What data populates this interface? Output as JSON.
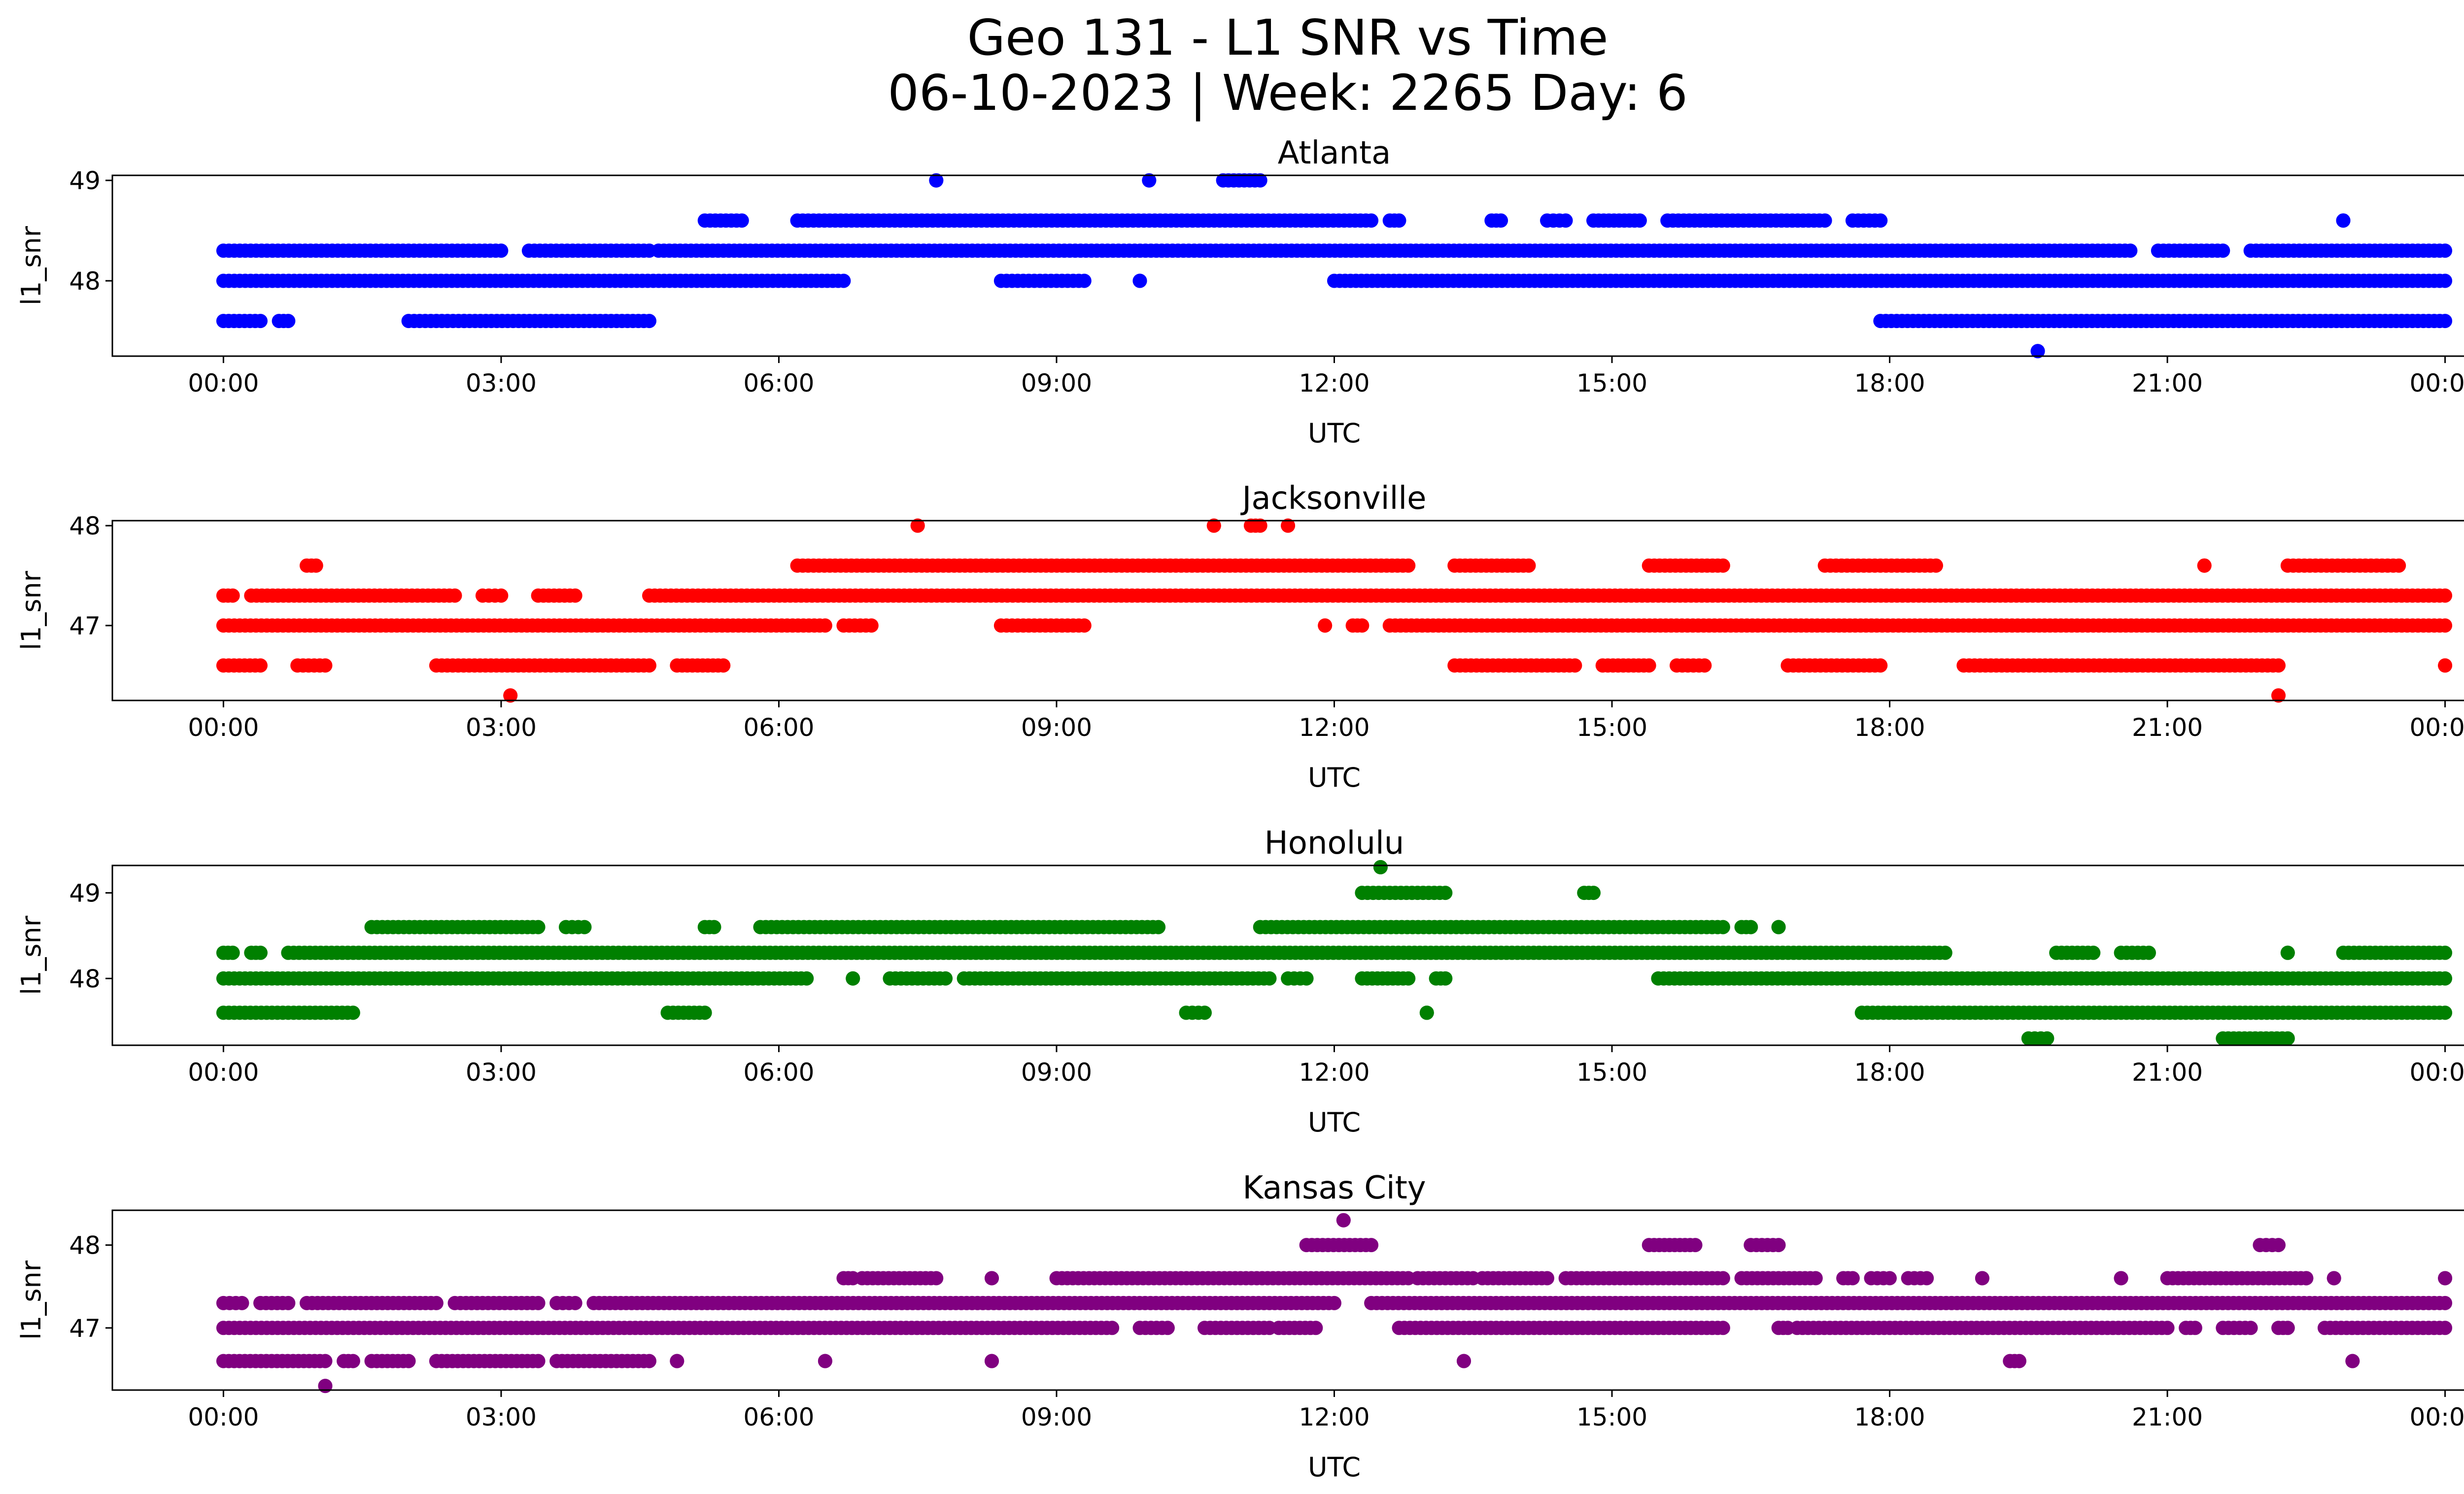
{
  "title": "Geo 131 - L1 SNR vs Time",
  "subtitle": "06-10-2023 | Week: 2265 Day: 6",
  "chart_data": [
    {
      "type": "scatter",
      "title": "Atlanta",
      "xlabel": "UTC",
      "ylabel": "l1_snr",
      "color": "#0000ff",
      "xticks": [
        "00:00",
        "03:00",
        "06:00",
        "09:00",
        "12:00",
        "15:00",
        "18:00",
        "21:00",
        "00:00"
      ],
      "xlim_hours": [
        -1.2,
        25.2
      ],
      "yticks": [
        48,
        49
      ],
      "ylim": [
        47.25,
        49.05
      ],
      "levels": [
        {
          "y": 48.0,
          "segments": [
            [
              0.0,
              6.7
            ],
            [
              8.4,
              9.3
            ],
            [
              9.9,
              9.9
            ],
            [
              12.0,
              24.0
            ]
          ]
        },
        {
          "y": 48.3,
          "segments": [
            [
              0.0,
              3.0
            ],
            [
              3.3,
              4.6
            ],
            [
              4.7,
              20.6
            ],
            [
              20.9,
              21.6
            ],
            [
              21.9,
              24.0
            ]
          ]
        },
        {
          "y": 47.6,
          "segments": [
            [
              0.0,
              0.4
            ],
            [
              0.6,
              0.7
            ],
            [
              2.0,
              2.6
            ],
            [
              2.6,
              4.6
            ],
            [
              17.9,
              24.0
            ]
          ]
        },
        {
          "y": 48.6,
          "segments": [
            [
              5.2,
              5.6
            ],
            [
              6.2,
              12.4
            ],
            [
              12.6,
              12.7
            ],
            [
              13.7,
              13.8
            ],
            [
              14.3,
              14.5
            ],
            [
              14.8,
              15.3
            ],
            [
              15.6,
              17.3
            ],
            [
              17.6,
              17.9
            ],
            [
              22.9,
              22.9
            ]
          ]
        },
        {
          "y": 49.0,
          "segments": [
            [
              7.7,
              7.7
            ],
            [
              10.0,
              10.0
            ],
            [
              10.8,
              11.2
            ]
          ]
        },
        {
          "y": 47.3,
          "segments": [
            [
              19.6,
              19.6
            ]
          ]
        }
      ]
    },
    {
      "type": "scatter",
      "title": "Jacksonville",
      "xlabel": "UTC",
      "ylabel": "l1_snr",
      "color": "#ff0000",
      "xticks": [
        "00:00",
        "03:00",
        "06:00",
        "09:00",
        "12:00",
        "15:00",
        "18:00",
        "21:00",
        "00:00"
      ],
      "xlim_hours": [
        -1.2,
        25.2
      ],
      "yticks": [
        47,
        48
      ],
      "ylim": [
        46.25,
        48.05
      ],
      "levels": [
        {
          "y": 47.0,
          "segments": [
            [
              0.0,
              6.5
            ],
            [
              6.7,
              7.0
            ],
            [
              8.4,
              9.3
            ],
            [
              11.9,
              11.9
            ],
            [
              12.2,
              12.3
            ],
            [
              12.6,
              24.0
            ]
          ]
        },
        {
          "y": 47.3,
          "segments": [
            [
              0.0,
              0.1
            ],
            [
              0.3,
              2.5
            ],
            [
              2.8,
              3.0
            ],
            [
              3.4,
              3.8
            ],
            [
              4.6,
              24.0
            ]
          ]
        },
        {
          "y": 46.6,
          "segments": [
            [
              0.0,
              0.4
            ],
            [
              0.8,
              1.1
            ],
            [
              2.3,
              4.6
            ],
            [
              4.9,
              5.4
            ],
            [
              13.3,
              14.6
            ],
            [
              14.9,
              15.4
            ],
            [
              15.7,
              16.0
            ],
            [
              16.9,
              17.9
            ],
            [
              18.8,
              22.2
            ],
            [
              24.0,
              24.0
            ]
          ]
        },
        {
          "y": 47.6,
          "segments": [
            [
              0.9,
              1.0
            ],
            [
              6.2,
              12.8
            ],
            [
              13.3,
              14.1
            ],
            [
              15.4,
              16.2
            ],
            [
              17.3,
              18.5
            ],
            [
              21.4,
              21.4
            ],
            [
              22.3,
              23.5
            ]
          ]
        },
        {
          "y": 48.0,
          "segments": [
            [
              7.5,
              7.5
            ],
            [
              10.7,
              10.7
            ],
            [
              11.1,
              11.2
            ],
            [
              11.5,
              11.5
            ]
          ]
        },
        {
          "y": 46.3,
          "segments": [
            [
              3.1,
              3.1
            ],
            [
              22.2,
              22.2
            ]
          ]
        }
      ]
    },
    {
      "type": "scatter",
      "title": "Honolulu",
      "xlabel": "UTC",
      "ylabel": "l1_snr",
      "color": "#008000",
      "xticks": [
        "00:00",
        "03:00",
        "06:00",
        "09:00",
        "12:00",
        "15:00",
        "18:00",
        "21:00",
        "00:00"
      ],
      "xlim_hours": [
        -1.2,
        25.2
      ],
      "yticks": [
        48,
        49
      ],
      "ylim": [
        47.22,
        49.32
      ],
      "levels": [
        {
          "y": 48.0,
          "segments": [
            [
              0.0,
              6.3
            ],
            [
              6.8,
              6.8
            ],
            [
              7.2,
              7.8
            ],
            [
              8.0,
              11.3
            ],
            [
              11.5,
              11.7
            ],
            [
              12.3,
              12.8
            ],
            [
              13.1,
              13.2
            ],
            [
              15.5,
              24.0
            ]
          ]
        },
        {
          "y": 48.3,
          "segments": [
            [
              0.0,
              0.1
            ],
            [
              0.3,
              0.4
            ],
            [
              0.7,
              18.6
            ],
            [
              19.8,
              20.2
            ],
            [
              20.5,
              20.8
            ],
            [
              22.3,
              22.3
            ],
            [
              22.9,
              24.0
            ]
          ]
        },
        {
          "y": 47.6,
          "segments": [
            [
              0.0,
              1.4
            ],
            [
              4.8,
              5.2
            ],
            [
              10.4,
              10.6
            ],
            [
              13.0,
              13.0
            ],
            [
              17.7,
              24.0
            ]
          ]
        },
        {
          "y": 48.6,
          "segments": [
            [
              1.6,
              3.4
            ],
            [
              3.7,
              3.9
            ],
            [
              5.2,
              5.3
            ],
            [
              5.8,
              10.1
            ],
            [
              11.2,
              16.2
            ],
            [
              16.4,
              16.5
            ],
            [
              16.8,
              16.8
            ]
          ]
        },
        {
          "y": 49.0,
          "segments": [
            [
              12.3,
              13.2
            ],
            [
              14.7,
              14.8
            ]
          ]
        },
        {
          "y": 49.3,
          "segments": [
            [
              12.5,
              12.5
            ]
          ]
        },
        {
          "y": 47.3,
          "segments": [
            [
              19.5,
              19.7
            ],
            [
              21.6,
              22.3
            ]
          ]
        }
      ]
    },
    {
      "type": "scatter",
      "title": "Kansas City",
      "xlabel": "UTC",
      "ylabel": "l1_snr",
      "color": "#800080",
      "xticks": [
        "00:00",
        "03:00",
        "06:00",
        "09:00",
        "12:00",
        "15:00",
        "18:00",
        "21:00",
        "00:00"
      ],
      "xlim_hours": [
        -1.2,
        25.2
      ],
      "yticks": [
        47,
        48
      ],
      "ylim": [
        46.25,
        48.42
      ],
      "levels": [
        {
          "y": 47.0,
          "segments": [
            [
              0.0,
              9.6
            ],
            [
              9.9,
              10.2
            ],
            [
              10.6,
              11.3
            ],
            [
              11.4,
              11.8
            ],
            [
              12.7,
              16.2
            ],
            [
              16.8,
              16.9
            ],
            [
              17.0,
              21.0
            ],
            [
              21.2,
              21.3
            ],
            [
              21.6,
              21.9
            ],
            [
              22.2,
              22.3
            ],
            [
              22.7,
              24.0
            ]
          ]
        },
        {
          "y": 47.3,
          "segments": [
            [
              0.0,
              0.2
            ],
            [
              0.4,
              0.7
            ],
            [
              0.9,
              2.3
            ],
            [
              2.5,
              3.4
            ],
            [
              3.6,
              3.8
            ],
            [
              4.0,
              12.0
            ],
            [
              12.4,
              24.0
            ]
          ]
        },
        {
          "y": 46.6,
          "segments": [
            [
              0.0,
              1.1
            ],
            [
              1.3,
              1.4
            ],
            [
              1.6,
              2.0
            ],
            [
              2.3,
              3.4
            ],
            [
              3.6,
              4.6
            ],
            [
              4.9,
              4.9
            ],
            [
              6.5,
              6.5
            ],
            [
              8.3,
              8.3
            ],
            [
              13.4,
              13.4
            ],
            [
              19.3,
              19.4
            ],
            [
              23.0,
              23.0
            ]
          ]
        },
        {
          "y": 47.6,
          "segments": [
            [
              6.7,
              6.8
            ],
            [
              6.9,
              7.7
            ],
            [
              8.3,
              8.3
            ],
            [
              9.0,
              12.8
            ],
            [
              12.9,
              13.5
            ],
            [
              13.6,
              14.3
            ],
            [
              14.5,
              16.2
            ],
            [
              16.4,
              17.2
            ],
            [
              17.5,
              17.6
            ],
            [
              17.8,
              18.0
            ],
            [
              18.2,
              18.4
            ],
            [
              19.0,
              19.0
            ],
            [
              20.5,
              20.5
            ],
            [
              21.0,
              22.5
            ],
            [
              22.5,
              22.5
            ],
            [
              22.8,
              22.8
            ],
            [
              24.0,
              24.0
            ]
          ]
        },
        {
          "y": 48.0,
          "segments": [
            [
              11.7,
              12.4
            ],
            [
              15.4,
              15.9
            ],
            [
              16.5,
              16.8
            ],
            [
              22.0,
              22.2
            ]
          ]
        },
        {
          "y": 48.3,
          "segments": [
            [
              12.1,
              12.1
            ]
          ]
        },
        {
          "y": 46.3,
          "segments": [
            [
              1.1,
              1.1
            ]
          ]
        }
      ]
    }
  ]
}
